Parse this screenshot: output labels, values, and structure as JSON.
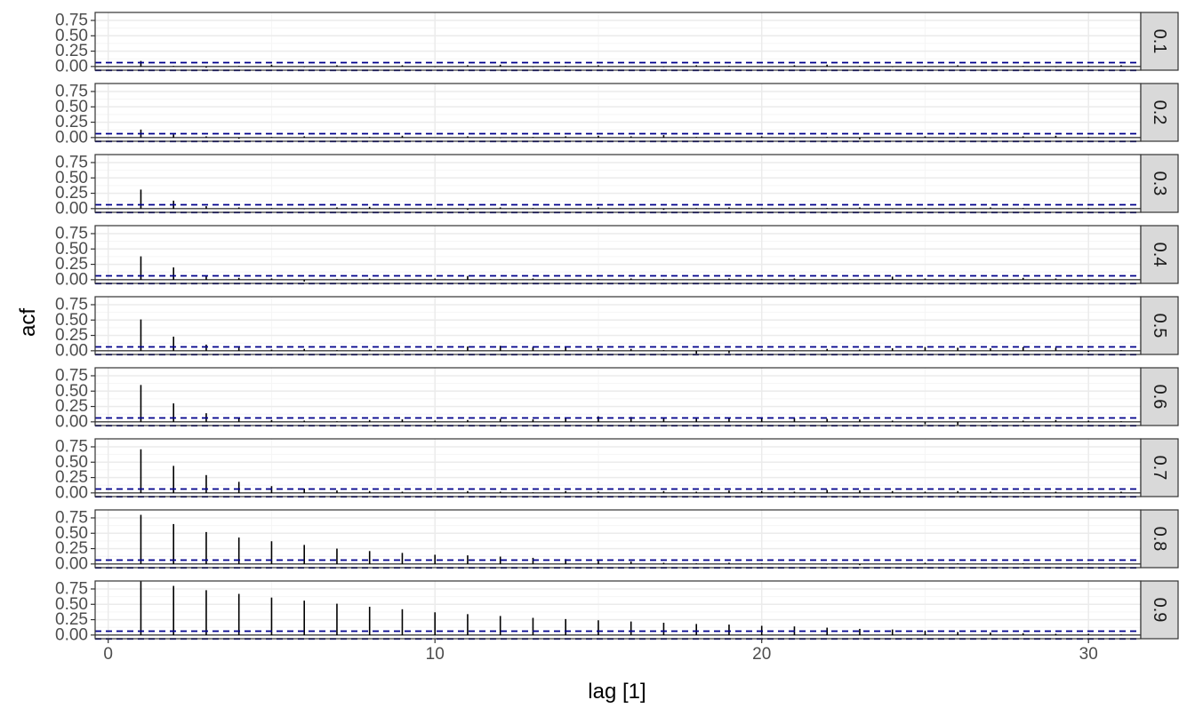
{
  "chart_data": {
    "type": "bar",
    "xlabel": "lag [1]",
    "ylabel": "acf",
    "xlim": [
      -0.4,
      31.6
    ],
    "ylim": [
      -0.06,
      0.88
    ],
    "x_ticks": [
      0,
      10,
      20,
      30
    ],
    "y_ticks": [
      0.0,
      0.25,
      0.5,
      0.75
    ],
    "y_tick_labels": [
      "0.00",
      "0.25",
      "0.50",
      "0.75"
    ],
    "confidence_bound": 0.063,
    "grid": true,
    "colors": {
      "bars": "#000000",
      "bounds": "#00008b",
      "strip_fill": "#d9d9d9",
      "panel_border": "#333333",
      "grid_major": "#ebebeb",
      "grid_minor": "#f5f5f5"
    },
    "lags": [
      1,
      2,
      3,
      4,
      5,
      6,
      7,
      8,
      9,
      10,
      11,
      12,
      13,
      14,
      15,
      16,
      17,
      18,
      19,
      20,
      21,
      22,
      23,
      24,
      25,
      26,
      27,
      28,
      29,
      30,
      31
    ],
    "panels": [
      {
        "label": "0.1",
        "values": [
          0.09,
          0.01,
          -0.02,
          0.01,
          0.03,
          -0.01,
          0.02,
          0.0,
          0.02,
          -0.01,
          0.02,
          0.03,
          -0.01,
          0.01,
          0.02,
          0.0,
          -0.01,
          0.02,
          0.01,
          0.0,
          0.02,
          0.03,
          0.01,
          -0.01,
          0.01,
          0.02,
          0.0,
          0.01,
          -0.01,
          0.01,
          0.02
        ]
      },
      {
        "label": "0.2",
        "values": [
          0.13,
          0.05,
          0.02,
          -0.02,
          0.01,
          0.02,
          -0.01,
          0.01,
          0.03,
          0.0,
          0.02,
          -0.01,
          0.01,
          0.02,
          0.03,
          0.02,
          0.04,
          0.01,
          0.0,
          0.02,
          -0.01,
          0.01,
          -0.03,
          0.0,
          0.02,
          0.01,
          -0.01,
          0.02,
          0.03,
          0.01,
          0.0
        ]
      },
      {
        "label": "0.3",
        "values": [
          0.31,
          0.13,
          0.04,
          0.02,
          0.01,
          -0.01,
          0.02,
          0.03,
          0.0,
          0.01,
          -0.02,
          0.02,
          0.01,
          0.0,
          0.02,
          -0.01,
          -0.02,
          0.01,
          0.02,
          0.01,
          0.0,
          0.01,
          0.02,
          -0.01,
          0.01,
          0.0,
          0.02,
          0.01,
          0.0,
          0.01,
          -0.01
        ]
      },
      {
        "label": "0.4",
        "values": [
          0.38,
          0.2,
          0.06,
          0.03,
          0.02,
          -0.03,
          0.01,
          0.02,
          0.0,
          0.02,
          0.06,
          0.01,
          0.02,
          0.0,
          0.01,
          0.02,
          0.01,
          0.0,
          0.02,
          0.01,
          0.02,
          0.0,
          0.01,
          0.05,
          0.02,
          0.01,
          0.0,
          0.03,
          0.02,
          0.01,
          0.0
        ]
      },
      {
        "label": "0.5",
        "values": [
          0.51,
          0.23,
          0.1,
          0.05,
          0.02,
          0.03,
          0.01,
          0.02,
          -0.01,
          0.02,
          0.07,
          0.08,
          0.06,
          0.07,
          0.04,
          0.03,
          0.01,
          -0.05,
          -0.04,
          0.02,
          0.01,
          0.03,
          0.02,
          0.04,
          0.06,
          0.05,
          0.04,
          0.06,
          0.05,
          -0.02,
          0.01
        ]
      },
      {
        "label": "0.6",
        "values": [
          0.6,
          0.3,
          0.14,
          0.06,
          0.03,
          0.02,
          0.01,
          0.03,
          0.04,
          0.02,
          0.03,
          0.05,
          0.04,
          0.07,
          0.09,
          0.08,
          0.06,
          0.05,
          0.06,
          0.07,
          0.06,
          0.05,
          0.04,
          0.02,
          -0.04,
          -0.05,
          0.01,
          0.02,
          0.03,
          0.02,
          0.01
        ]
      },
      {
        "label": "0.7",
        "values": [
          0.71,
          0.44,
          0.29,
          0.18,
          0.11,
          0.07,
          0.04,
          0.03,
          0.02,
          0.01,
          0.03,
          0.02,
          0.01,
          0.03,
          0.02,
          0.01,
          0.03,
          0.02,
          0.04,
          0.03,
          0.02,
          0.05,
          0.04,
          0.03,
          0.02,
          0.03,
          0.02,
          0.01,
          0.02,
          0.01,
          0.02
        ]
      },
      {
        "label": "0.8",
        "values": [
          0.8,
          0.65,
          0.52,
          0.43,
          0.37,
          0.31,
          0.25,
          0.21,
          0.18,
          0.15,
          0.14,
          0.12,
          0.1,
          0.08,
          0.05,
          0.04,
          0.02,
          0.01,
          0.02,
          0.01,
          0.0,
          -0.01,
          -0.02,
          0.0,
          0.02,
          0.01,
          0.0,
          0.01,
          0.0,
          0.01,
          0.0
        ]
      },
      {
        "label": "0.9",
        "values": [
          0.88,
          0.8,
          0.73,
          0.67,
          0.61,
          0.56,
          0.51,
          0.46,
          0.42,
          0.37,
          0.34,
          0.31,
          0.28,
          0.26,
          0.24,
          0.22,
          0.2,
          0.18,
          0.17,
          0.15,
          0.14,
          0.12,
          0.1,
          0.09,
          0.07,
          0.05,
          0.04,
          0.03,
          0.02,
          0.02,
          0.01
        ]
      }
    ]
  }
}
